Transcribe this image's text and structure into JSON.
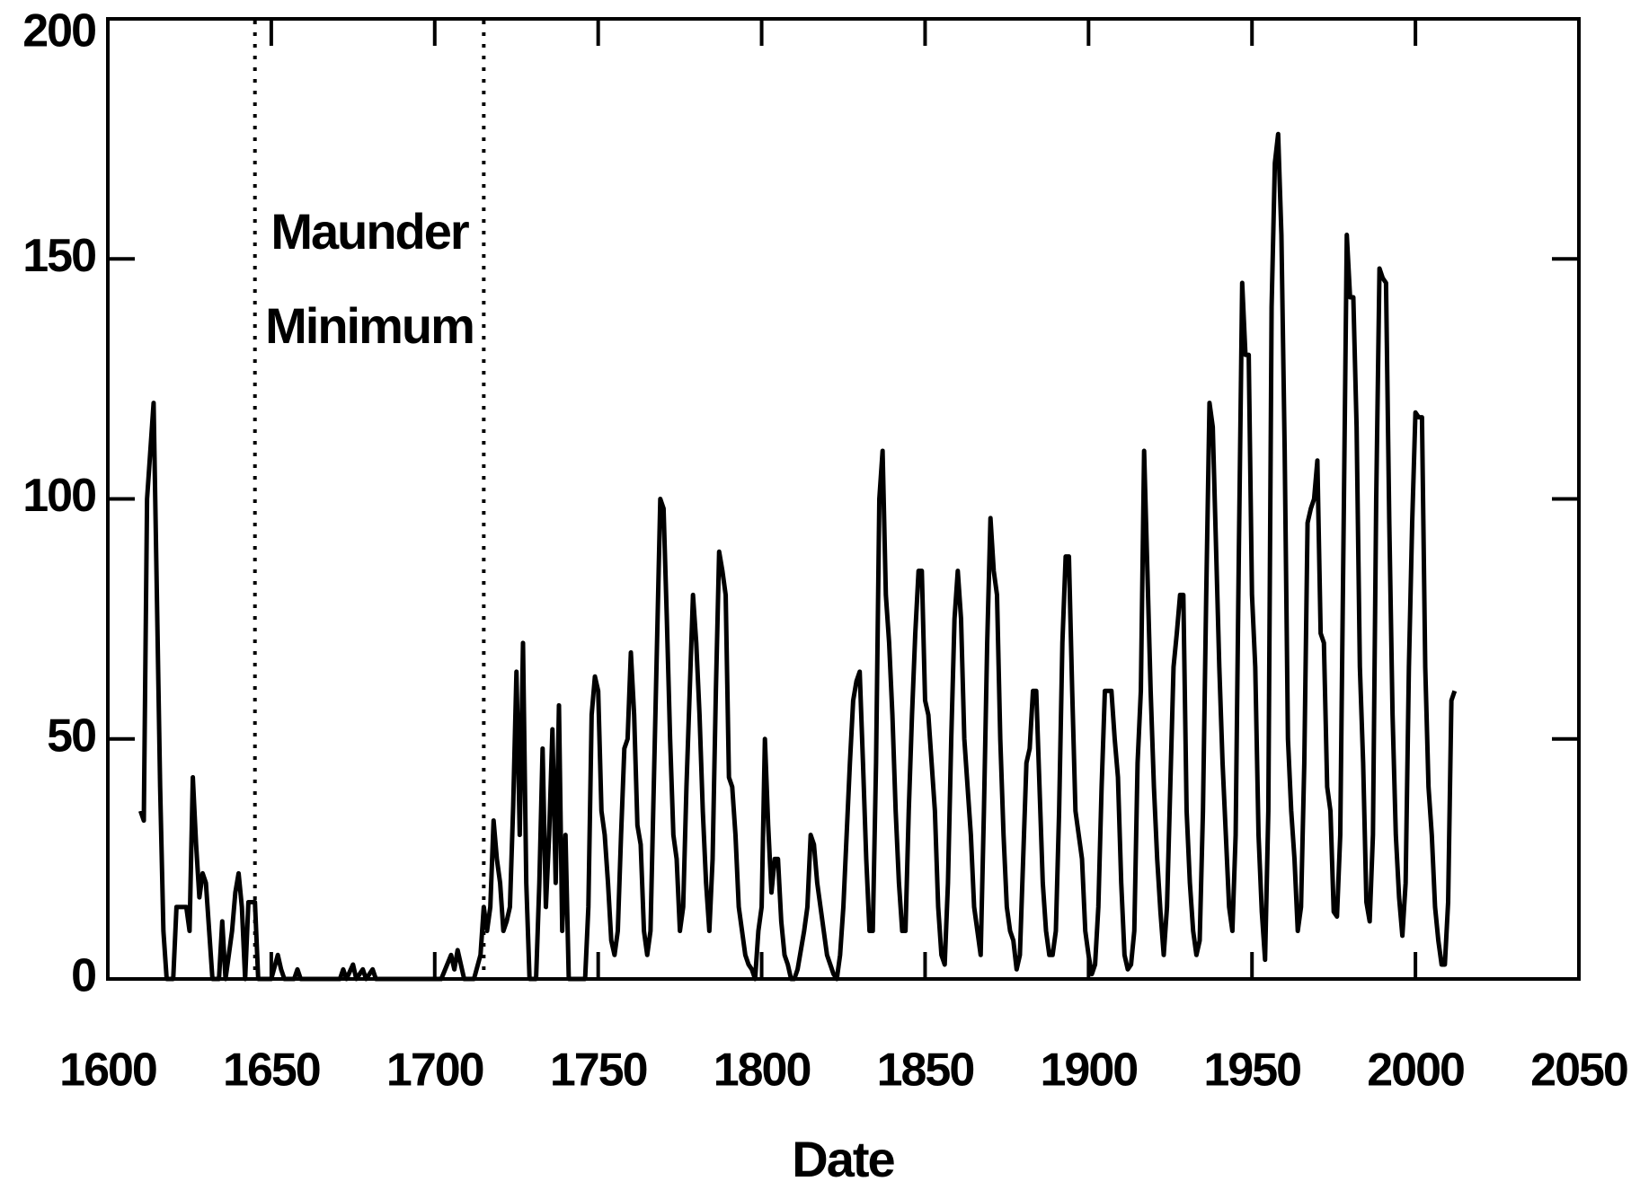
{
  "chart_data": {
    "type": "line",
    "x_label": "Date",
    "color": "#000000",
    "annotation": {
      "lines": [
        "Maunder",
        "Minimum"
      ],
      "bounds": [
        1645,
        1715
      ]
    },
    "xlim": [
      1600,
      2050
    ],
    "xticks": [
      1600,
      1650,
      1700,
      1750,
      1800,
      1850,
      1900,
      1950,
      2000,
      2050
    ],
    "ylim": [
      0,
      200
    ],
    "yticks": [
      0,
      50,
      100,
      150,
      200
    ],
    "x": [
      1610,
      1611,
      1612,
      1613,
      1614,
      1615,
      1616,
      1617,
      1618,
      1619,
      1620,
      1621,
      1622,
      1623,
      1624,
      1625,
      1626,
      1627,
      1628,
      1629,
      1630,
      1631,
      1632,
      1633,
      1634,
      1635,
      1636,
      1637,
      1638,
      1639,
      1640,
      1641,
      1642,
      1643,
      1644,
      1645,
      1646,
      1650,
      1652,
      1653,
      1654,
      1657,
      1658,
      1659,
      1671,
      1672,
      1673,
      1675,
      1676,
      1678,
      1679,
      1681,
      1682,
      1702,
      1705,
      1706,
      1707,
      1709,
      1712,
      1714,
      1715,
      1716,
      1717,
      1718,
      1719,
      1720,
      1721,
      1722,
      1723,
      1724,
      1725,
      1726,
      1727,
      1728,
      1729,
      1730,
      1731,
      1732,
      1733,
      1734,
      1735,
      1736,
      1737,
      1738,
      1739,
      1740,
      1741,
      1742,
      1743,
      1744,
      1745,
      1746,
      1747,
      1748,
      1749,
      1750,
      1751,
      1752,
      1753,
      1754,
      1755,
      1756,
      1757,
      1758,
      1759,
      1760,
      1761,
      1762,
      1763,
      1764,
      1765,
      1766,
      1767,
      1768,
      1769,
      1770,
      1771,
      1772,
      1773,
      1774,
      1775,
      1776,
      1777,
      1778,
      1779,
      1780,
      1781,
      1782,
      1783,
      1784,
      1785,
      1786,
      1787,
      1788,
      1789,
      1790,
      1791,
      1792,
      1793,
      1794,
      1795,
      1796,
      1797,
      1798,
      1799,
      1800,
      1801,
      1802,
      1803,
      1804,
      1805,
      1806,
      1807,
      1808,
      1809,
      1810,
      1811,
      1812,
      1813,
      1814,
      1815,
      1816,
      1817,
      1818,
      1819,
      1820,
      1821,
      1822,
      1823,
      1824,
      1825,
      1826,
      1827,
      1828,
      1829,
      1830,
      1831,
      1832,
      1833,
      1834,
      1835,
      1836,
      1837,
      1838,
      1839,
      1840,
      1841,
      1842,
      1843,
      1844,
      1845,
      1846,
      1847,
      1848,
      1849,
      1850,
      1851,
      1852,
      1853,
      1854,
      1855,
      1856,
      1857,
      1858,
      1859,
      1860,
      1861,
      1862,
      1863,
      1864,
      1865,
      1866,
      1867,
      1868,
      1869,
      1870,
      1871,
      1872,
      1873,
      1874,
      1875,
      1876,
      1877,
      1878,
      1879,
      1880,
      1881,
      1882,
      1883,
      1884,
      1885,
      1886,
      1887,
      1888,
      1889,
      1890,
      1891,
      1892,
      1893,
      1894,
      1895,
      1896,
      1897,
      1898,
      1899,
      1900,
      1901,
      1902,
      1903,
      1904,
      1905,
      1906,
      1907,
      1908,
      1909,
      1910,
      1911,
      1912,
      1913,
      1914,
      1915,
      1916,
      1917,
      1918,
      1919,
      1920,
      1921,
      1922,
      1923,
      1924,
      1925,
      1926,
      1927,
      1928,
      1929,
      1930,
      1931,
      1932,
      1933,
      1934,
      1935,
      1936,
      1937,
      1938,
      1939,
      1940,
      1941,
      1942,
      1943,
      1944,
      1945,
      1946,
      1947,
      1948,
      1949,
      1950,
      1951,
      1952,
      1953,
      1954,
      1955,
      1956,
      1957,
      1958,
      1959,
      1960,
      1961,
      1962,
      1963,
      1964,
      1965,
      1966,
      1967,
      1968,
      1969,
      1970,
      1971,
      1972,
      1973,
      1974,
      1975,
      1976,
      1977,
      1978,
      1979,
      1980,
      1981,
      1982,
      1983,
      1984,
      1985,
      1986,
      1987,
      1988,
      1989,
      1990,
      1991,
      1992,
      1993,
      1994,
      1995,
      1996,
      1997,
      1998,
      1999,
      2000,
      2001,
      2002,
      2003,
      2004,
      2005,
      2006,
      2007,
      2008,
      2009,
      2010,
      2011,
      2012
    ],
    "values": [
      35,
      33,
      100,
      110,
      120,
      80,
      40,
      10,
      0,
      0,
      0,
      15,
      15,
      15,
      15,
      10,
      42,
      28,
      17,
      22,
      20,
      10,
      0,
      0,
      0,
      12,
      0,
      5,
      10,
      18,
      22,
      15,
      0,
      16,
      16,
      16,
      0,
      0,
      5,
      2,
      0,
      0,
      2,
      0,
      0,
      2,
      0,
      3,
      0,
      2,
      0,
      2,
      0,
      0,
      5,
      2,
      6,
      0,
      0,
      5,
      15,
      10,
      15,
      33,
      25,
      20,
      10,
      12,
      15,
      36,
      64,
      30,
      70,
      20,
      0,
      0,
      0,
      20,
      48,
      15,
      30,
      52,
      20,
      57,
      10,
      30,
      0,
      0,
      0,
      0,
      0,
      0,
      15,
      55,
      63,
      60,
      35,
      30,
      20,
      8,
      5,
      10,
      30,
      48,
      50,
      68,
      55,
      32,
      28,
      10,
      5,
      10,
      40,
      70,
      100,
      98,
      75,
      50,
      30,
      25,
      10,
      15,
      40,
      60,
      80,
      70,
      55,
      35,
      20,
      10,
      25,
      60,
      89,
      85,
      80,
      42,
      40,
      30,
      15,
      10,
      5,
      3,
      2,
      0,
      10,
      15,
      50,
      32,
      18,
      25,
      25,
      12,
      5,
      3,
      0,
      0,
      2,
      6,
      10,
      15,
      30,
      28,
      20,
      15,
      10,
      5,
      3,
      1,
      0,
      5,
      15,
      30,
      45,
      58,
      62,
      64,
      45,
      25,
      10,
      10,
      45,
      100,
      110,
      80,
      70,
      55,
      35,
      20,
      10,
      10,
      35,
      55,
      72,
      85,
      85,
      58,
      55,
      45,
      35,
      15,
      5,
      3,
      20,
      50,
      75,
      85,
      75,
      50,
      40,
      30,
      15,
      10,
      5,
      35,
      70,
      96,
      85,
      80,
      50,
      30,
      15,
      10,
      8,
      2,
      5,
      25,
      45,
      48,
      60,
      60,
      40,
      20,
      10,
      5,
      5,
      10,
      35,
      70,
      88,
      88,
      60,
      35,
      30,
      25,
      10,
      5,
      1,
      3,
      15,
      40,
      60,
      60,
      60,
      50,
      42,
      20,
      5,
      2,
      3,
      10,
      45,
      60,
      110,
      85,
      60,
      40,
      25,
      14,
      5,
      15,
      40,
      65,
      72,
      80,
      80,
      35,
      20,
      10,
      5,
      8,
      35,
      80,
      120,
      115,
      90,
      65,
      45,
      30,
      15,
      10,
      30,
      90,
      145,
      130,
      130,
      80,
      65,
      30,
      14,
      4,
      35,
      140,
      170,
      176,
      155,
      110,
      50,
      35,
      25,
      10,
      15,
      45,
      95,
      98,
      100,
      108,
      72,
      70,
      40,
      35,
      14,
      13,
      30,
      92,
      155,
      142,
      142,
      115,
      65,
      45,
      16,
      12,
      30,
      100,
      148,
      146,
      145,
      95,
      55,
      30,
      17,
      9,
      20,
      65,
      95,
      118,
      117,
      117,
      65,
      40,
      30,
      15,
      8,
      3,
      3,
      16,
      58,
      60
    ]
  }
}
